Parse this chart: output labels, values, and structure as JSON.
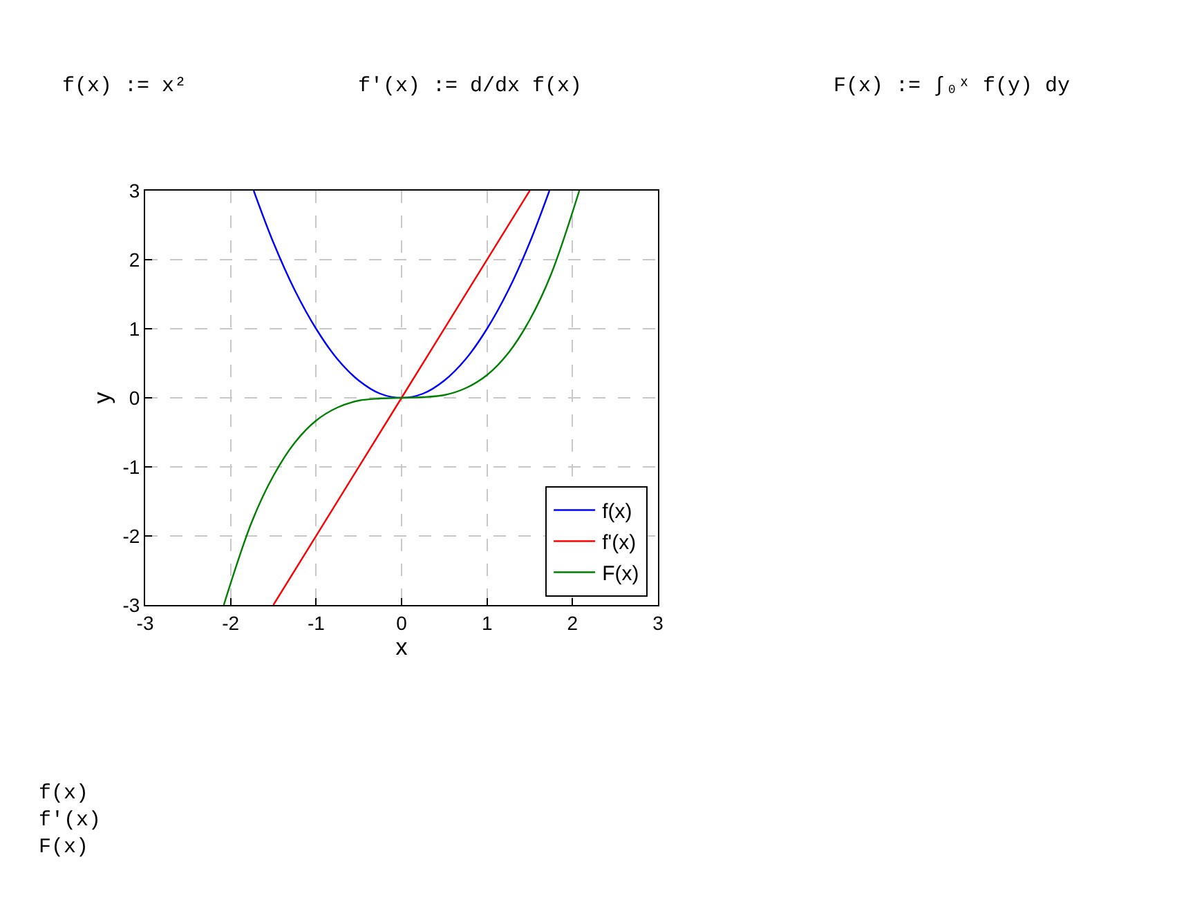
{
  "chart_data": {
    "type": "line",
    "xlabel": "x",
    "ylabel": "y",
    "xlim": [
      -3,
      3
    ],
    "ylim": [
      -3,
      3
    ],
    "xticks": [
      -3,
      -2,
      -1,
      0,
      1,
      2,
      3
    ],
    "yticks": [
      -3,
      -2,
      -1,
      0,
      1,
      2,
      3
    ],
    "grid": true,
    "legend": "bottom right",
    "line_style": "solid",
    "marker": "none",
    "annotations": [
      "f(x) := x²",
      "f'(x) := d/dx f(x)",
      "F(x) := ∫₀ˣ f(y) dy",
      "f(x)\nf'(x)\nF(x)"
    ],
    "series": [
      {
        "name": "f(x)",
        "color": "#0000ff",
        "x": [
          -1.73,
          -1.5,
          -1.25,
          -1,
          -0.75,
          -0.5,
          -0.25,
          0,
          0.25,
          0.5,
          0.75,
          1,
          1.25,
          1.5,
          1.73
        ],
        "values": [
          3,
          2.25,
          1.56,
          1,
          0.56,
          0.25,
          0.06,
          0,
          0.06,
          0.25,
          0.56,
          1,
          1.56,
          2.25,
          3
        ]
      },
      {
        "name": "f'(x)",
        "color": "#ff0000",
        "x": [
          -1.5,
          0,
          1.5
        ],
        "values": [
          -3,
          0,
          3
        ]
      },
      {
        "name": "F(x)",
        "color": "#008000",
        "x": [
          -2.08,
          -1.75,
          -1.5,
          -1.25,
          -1,
          -0.75,
          -0.5,
          -0.25,
          0,
          0.25,
          0.5,
          0.75,
          1,
          1.25,
          1.5,
          1.75,
          2.08
        ],
        "values": [
          -3,
          -1.79,
          -1.13,
          -0.65,
          -0.33,
          -0.14,
          -0.04,
          -0.01,
          0,
          0.01,
          0.04,
          0.14,
          0.33,
          0.65,
          1.13,
          1.79,
          3
        ]
      }
    ]
  }
}
